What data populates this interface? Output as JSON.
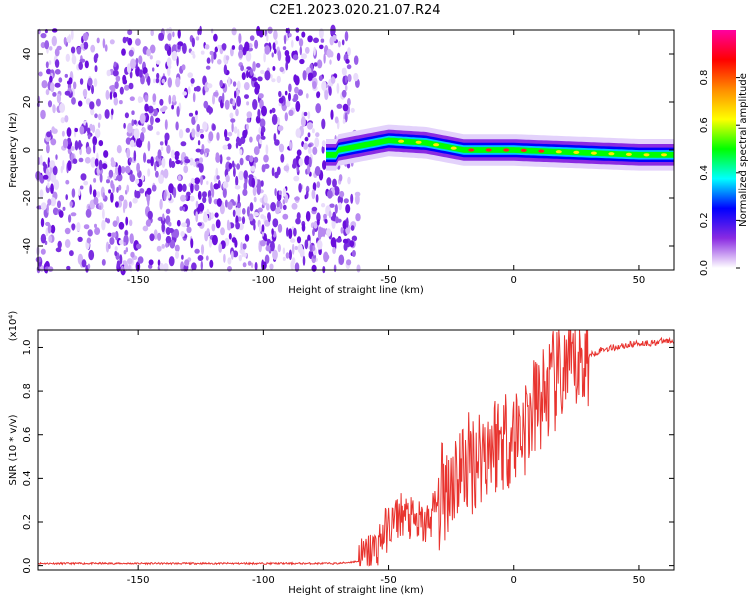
{
  "title": "C2E1.2023.020.21.07.R24",
  "colors": {
    "snr_line": "#e8332e"
  },
  "chart_data": [
    {
      "type": "heatmap",
      "xlabel": "Height of straight line (km)",
      "ylabel": "Frequency (Hz)",
      "xlim": [
        -190,
        64
      ],
      "ylim": [
        -50,
        50
      ],
      "xticks": [
        -150,
        -100,
        -50,
        0,
        50
      ],
      "yticks": [
        40,
        20,
        0,
        -20,
        -40
      ],
      "colorbar": {
        "label": "Normalized spectral amplitude",
        "range": [
          0,
          1
        ],
        "ticks": [
          0.0,
          0.2,
          0.4,
          0.6,
          0.8
        ],
        "tick_labels": [
          "0.0",
          "0.2",
          "0.4",
          "0.6",
          "0.8"
        ],
        "colormap": [
          "#ffffff",
          "#8a2be2",
          "#0000ff",
          "#00ffff",
          "#00ff00",
          "#ffff00",
          "#ff8c00",
          "#ff0000",
          "#ff00a0"
        ]
      },
      "regions": [
        {
          "description": "broadband noise",
          "x_range": [
            -190,
            -62
          ],
          "f_range": [
            -50,
            50
          ],
          "amplitude": 0.1
        },
        {
          "description": "signal band near 0 Hz",
          "x_range": [
            -75,
            64
          ],
          "center_hz": [
            [
              -70,
              0
            ],
            [
              -50,
              4
            ],
            [
              -35,
              3
            ],
            [
              -20,
              0
            ],
            [
              0,
              0
            ],
            [
              50,
              -2
            ],
            [
              64,
              -2
            ]
          ],
          "halfwidth_hz": 3
        }
      ]
    },
    {
      "type": "line",
      "xlabel": "Height of straight line (km)",
      "ylabel": "SNR (10 * v/v)",
      "multiplier": "(x10⁴)",
      "xlim": [
        -190,
        64
      ],
      "ylim": [
        -0.02,
        1.08
      ],
      "xticks": [
        -150,
        -100,
        -50,
        0,
        50
      ],
      "yticks": [
        0.0,
        0.2,
        0.4,
        0.6,
        0.8,
        1.0
      ],
      "ytick_labels": [
        "0.0",
        "0.2",
        "0.4",
        "0.6",
        "0.8",
        "1.0"
      ],
      "series": [
        {
          "x": [
            -190,
            -150,
            -100,
            -70,
            -62,
            -58,
            -55,
            -52,
            -48,
            -45,
            -40,
            -35,
            -30,
            -25,
            -20,
            -15,
            -10,
            -5,
            0,
            5,
            10,
            15,
            20,
            25,
            30,
            35,
            40,
            45,
            50,
            55,
            60,
            64
          ],
          "values": [
            0.01,
            0.01,
            0.01,
            0.01,
            0.02,
            0.05,
            0.08,
            0.15,
            0.2,
            0.24,
            0.2,
            0.18,
            0.3,
            0.4,
            0.45,
            0.5,
            0.55,
            0.58,
            0.6,
            0.65,
            0.75,
            0.82,
            0.88,
            0.92,
            0.96,
            0.99,
            1.0,
            1.01,
            1.02,
            1.02,
            1.03,
            1.03
          ]
        }
      ]
    }
  ]
}
